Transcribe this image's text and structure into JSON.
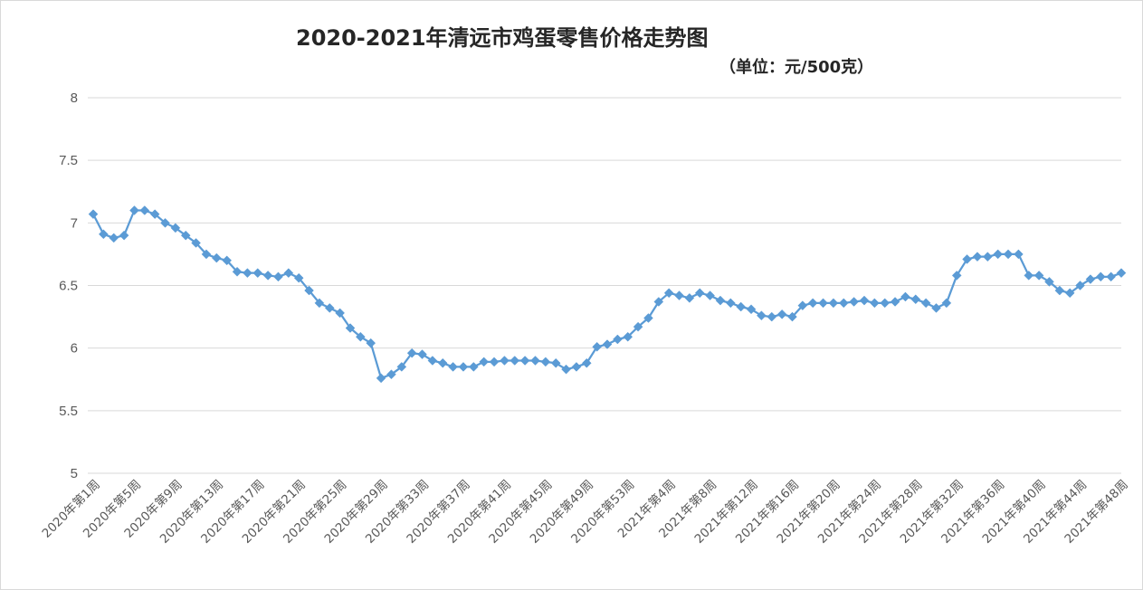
{
  "chart_data": {
    "type": "line",
    "title": "2020-2021年清远市鸡蛋零售价格走势图",
    "subtitle": "（单位：元/500克）",
    "xlabel": "",
    "ylabel": "",
    "ylim": [
      5,
      8
    ],
    "yticks": [
      "5",
      "5.5",
      "6",
      "6.5",
      "7",
      "7.5",
      "8"
    ],
    "grid": true,
    "marker": "diamond",
    "line_color": "#5b9bd5",
    "x_tick_labels": [
      "2020年第1周",
      "2020年第5周",
      "2020年第9周",
      "2020年第13周",
      "2020年第17周",
      "2020年第21周",
      "2020年第25周",
      "2020年第29周",
      "2020年第33周",
      "2020年第37周",
      "2020年第41周",
      "2020年第45周",
      "2020年第49周",
      "2020年第53周",
      "2021年第4周",
      "2021年第8周",
      "2021年第12周",
      "2021年第16周",
      "2021年第20周",
      "2021年第24周",
      "2021年第28周",
      "2021年第32周",
      "2021年第36周",
      "2021年第40周",
      "2021年第44周",
      "2021年第48周"
    ],
    "x_tick_every": 4,
    "series": [
      {
        "values": [
          7.07,
          6.91,
          6.88,
          6.9,
          7.1,
          7.1,
          7.07,
          7.0,
          6.96,
          6.9,
          6.84,
          6.75,
          6.72,
          6.7,
          6.61,
          6.6,
          6.6,
          6.58,
          6.57,
          6.6,
          6.56,
          6.46,
          6.36,
          6.32,
          6.28,
          6.16,
          6.09,
          6.04,
          5.76,
          5.79,
          5.85,
          5.96,
          5.95,
          5.9,
          5.88,
          5.85,
          5.85,
          5.85,
          5.89,
          5.89,
          5.9,
          5.9,
          5.9,
          5.9,
          5.89,
          5.88,
          5.83,
          5.85,
          5.88,
          6.01,
          6.03,
          6.07,
          6.09,
          6.17,
          6.24,
          6.37,
          6.44,
          6.42,
          6.4,
          6.44,
          6.42,
          6.38,
          6.36,
          6.33,
          6.31,
          6.26,
          6.25,
          6.27,
          6.25,
          6.34,
          6.36,
          6.36,
          6.36,
          6.36,
          6.37,
          6.38,
          6.36,
          6.36,
          6.37,
          6.41,
          6.39,
          6.36,
          6.32,
          6.36,
          6.58,
          6.71,
          6.73,
          6.73,
          6.75,
          6.75,
          6.75,
          6.58,
          6.58,
          6.53,
          6.46,
          6.44,
          6.5,
          6.55,
          6.57,
          6.57,
          6.6
        ]
      }
    ]
  }
}
